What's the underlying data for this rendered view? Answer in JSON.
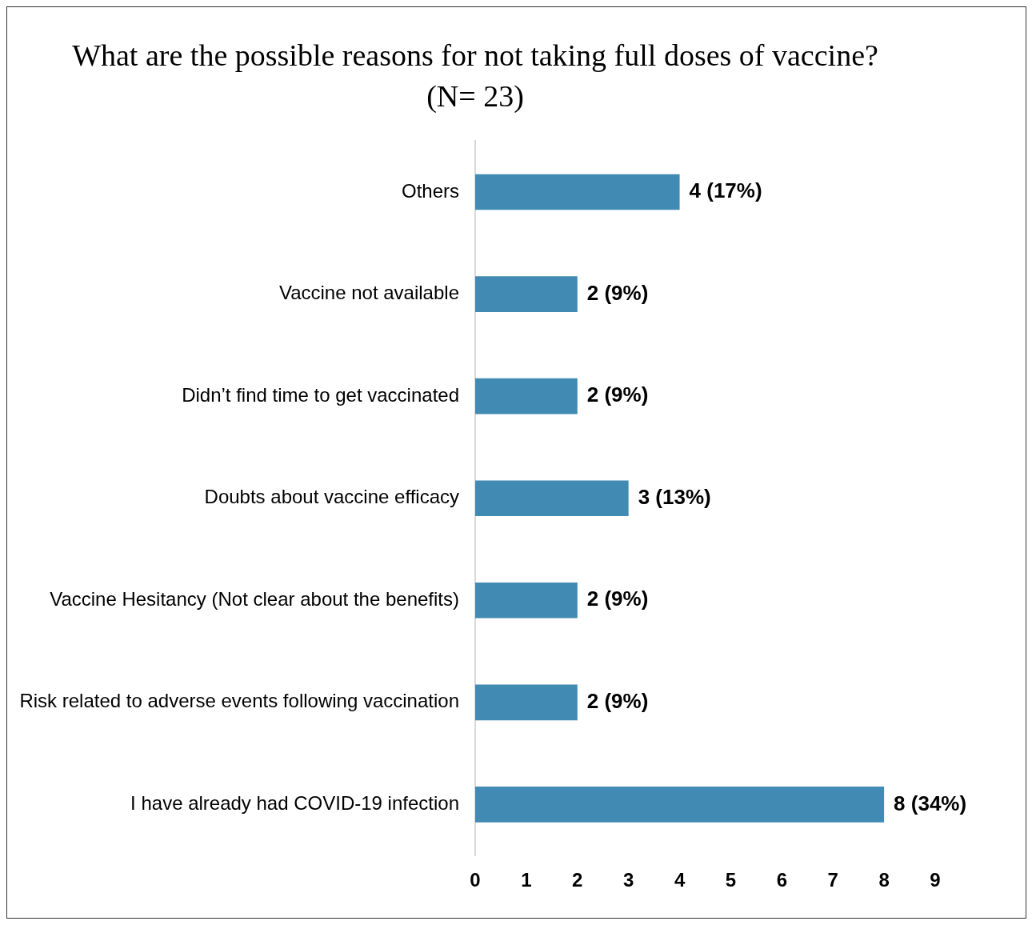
{
  "chart_data": {
    "type": "bar",
    "orientation": "horizontal",
    "title": "What are the possible reasons for not taking full doses of vaccine?",
    "subtitle": "(N= 23)",
    "categories": [
      "Others",
      "Vaccine not available",
      "Didn’t find time to get vaccinated",
      "Doubts about vaccine efficacy",
      "Vaccine Hesitancy (Not clear about the benefits)",
      "Risk related to adverse events following vaccination",
      "I have already had COVID-19 infection"
    ],
    "values": [
      4,
      2,
      2,
      3,
      2,
      2,
      8
    ],
    "value_labels": [
      "4 (17%)",
      "2 (9%)",
      "2 (9%)",
      "3 (13%)",
      "2 (9%)",
      "2 (9%)",
      "8 (34%)"
    ],
    "color": "#418ab3",
    "xlim": [
      0,
      9
    ],
    "xticks": [
      0,
      1,
      2,
      3,
      4,
      5,
      6,
      7,
      8,
      9
    ],
    "grid": false,
    "legend": false
  }
}
